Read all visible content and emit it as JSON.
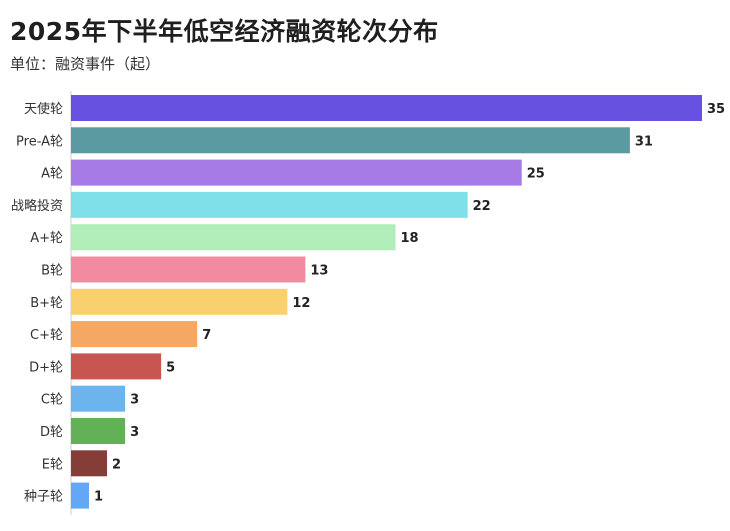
{
  "title": "2025年下半年低空经济融资轮次分布",
  "subtitle": "单位：融资事件（起）",
  "chart_data": {
    "type": "bar",
    "orientation": "horizontal",
    "title": "2025年下半年低空经济融资轮次分布",
    "subtitle": "单位：融资事件（起）",
    "categories": [
      "天使轮",
      "Pre-A轮",
      "A轮",
      "战略投资",
      "A+轮",
      "B轮",
      "B+轮",
      "C+轮",
      "D+轮",
      "C轮",
      "D轮",
      "E轮",
      "种子轮"
    ],
    "values": [
      35,
      31,
      25,
      22,
      18,
      13,
      12,
      7,
      5,
      3,
      3,
      2,
      1
    ],
    "colors": [
      "#6651e0",
      "#5a9aa0",
      "#a67be6",
      "#80e0ea",
      "#b0edb8",
      "#f38ba0",
      "#fad06e",
      "#f4a862",
      "#c75550",
      "#6cb4ee",
      "#62b157",
      "#843e37",
      "#64a7f7"
    ],
    "xlim": [
      0,
      35
    ],
    "grid": false,
    "legend": "none"
  }
}
